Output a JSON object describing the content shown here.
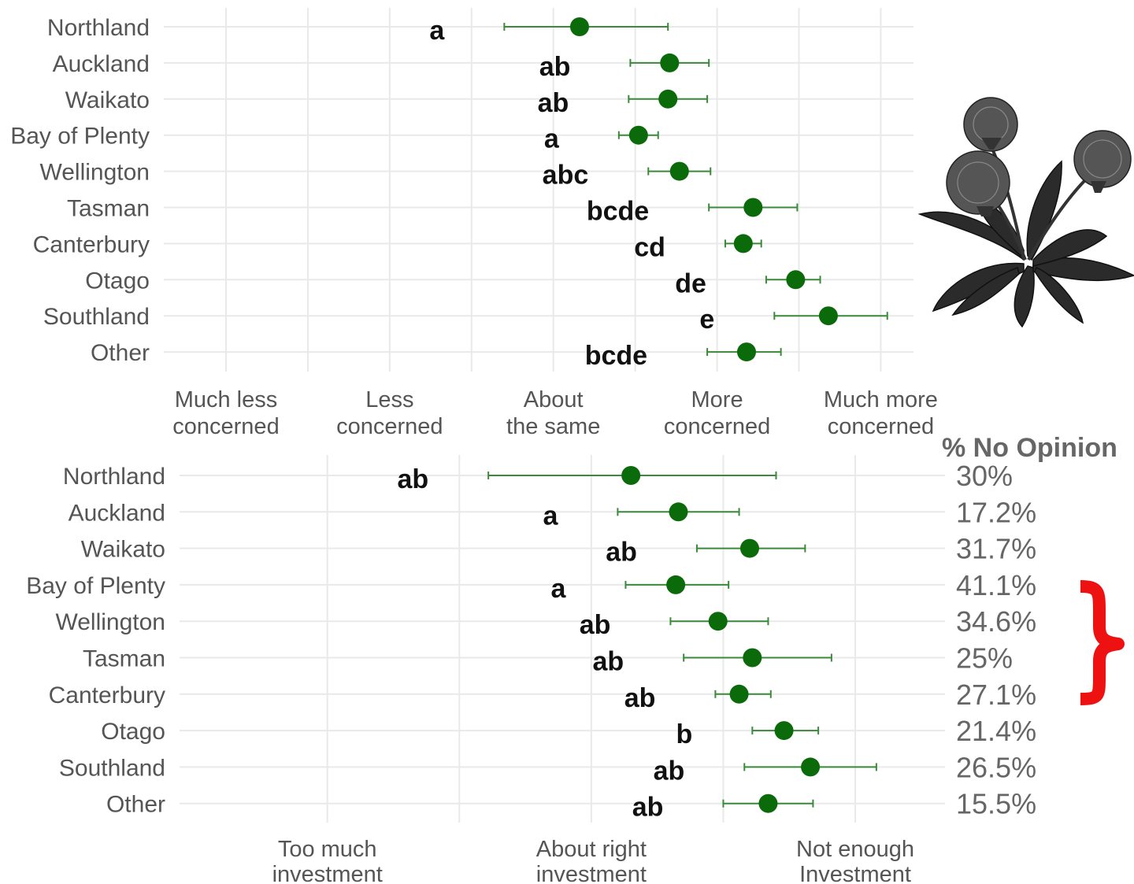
{
  "chart_data": [
    {
      "type": "scatter",
      "categories": [
        "Northland",
        "Auckland",
        "Waikato",
        "Bay of Plenty",
        "Wellington",
        "Tasman",
        "Canterbury",
        "Otago",
        "Southland",
        "Other"
      ],
      "x_tick_labels": [
        [
          "Much less",
          "concerned"
        ],
        [
          "Less",
          "concerned"
        ],
        [
          "About",
          "the same"
        ],
        [
          "More",
          "concerned"
        ],
        [
          "Much more",
          "concerned"
        ]
      ],
      "x_ticks": [
        1,
        2,
        3,
        4,
        5
      ],
      "xlim": [
        0.62,
        5.2
      ],
      "means": [
        3.16,
        3.71,
        3.7,
        3.52,
        3.77,
        4.22,
        4.16,
        4.48,
        4.68,
        4.18
      ],
      "ci_low": [
        2.7,
        3.47,
        3.46,
        3.4,
        3.58,
        3.95,
        4.05,
        4.3,
        4.35,
        3.94
      ],
      "ci_high": [
        3.7,
        3.95,
        3.94,
        3.64,
        3.96,
        4.49,
        4.27,
        4.63,
        5.04,
        4.39
      ],
      "group_letters": [
        "a",
        "ab",
        "ab",
        "a",
        "abc",
        "bcde",
        "cd",
        "de",
        "e",
        "bcde"
      ],
      "grid": true,
      "point_color": "#0b6b0b",
      "errorbar_color": "#3a8a3a"
    },
    {
      "type": "scatter",
      "categories": [
        "Northland",
        "Auckland",
        "Waikato",
        "Bay of Plenty",
        "Wellington",
        "Tasman",
        "Canterbury",
        "Otago",
        "Southland",
        "Other"
      ],
      "x_tick_labels": [
        [
          "Too much",
          "investment"
        ],
        [
          "About right",
          "investment"
        ],
        [
          "Not enough",
          "Investment"
        ]
      ],
      "x_ticks": [
        1,
        2,
        3
      ],
      "xlim": [
        0.44,
        3.34
      ],
      "means": [
        2.15,
        2.33,
        2.6,
        2.32,
        2.48,
        2.61,
        2.56,
        2.73,
        2.83,
        2.67
      ],
      "ci_low": [
        1.61,
        2.1,
        2.4,
        2.13,
        2.3,
        2.35,
        2.47,
        2.61,
        2.58,
        2.5
      ],
      "ci_high": [
        2.7,
        2.56,
        2.81,
        2.52,
        2.67,
        2.91,
        2.68,
        2.86,
        3.08,
        2.84
      ],
      "group_letters": [
        "ab",
        "a",
        "ab",
        "a",
        "ab",
        "ab",
        "ab",
        "b",
        "ab",
        "ab"
      ],
      "grid": true,
      "point_color": "#0b6b0b",
      "errorbar_color": "#3a8a3a",
      "no_opinion_header": "% No Opinion",
      "no_opinion": [
        "30%",
        "17.2%",
        "31.7%",
        "41.1%",
        "34.6%",
        "25%",
        "27.1%",
        "21.4%",
        "26.5%",
        "15.5%"
      ]
    }
  ],
  "icons": {
    "plant": "dandelion-icon",
    "brace": "red-brace-icon"
  },
  "colors": {
    "brace": "#ee1111",
    "plant": "#2b2b2b"
  }
}
